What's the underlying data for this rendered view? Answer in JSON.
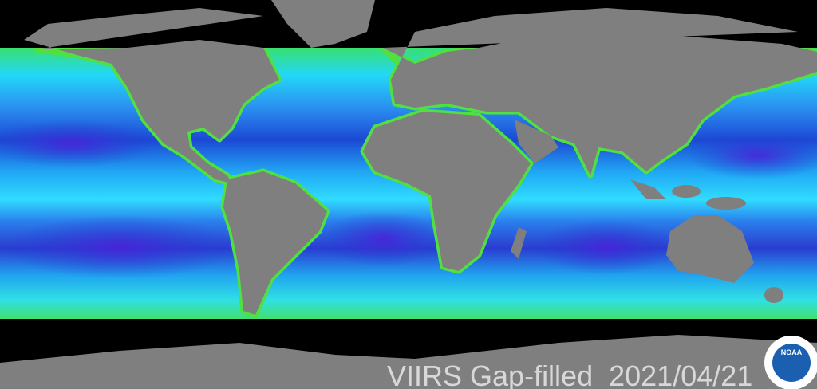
{
  "caption": "VIIRS Gap-filled  2021/04/21",
  "logo": {
    "text": "NOAA"
  }
}
